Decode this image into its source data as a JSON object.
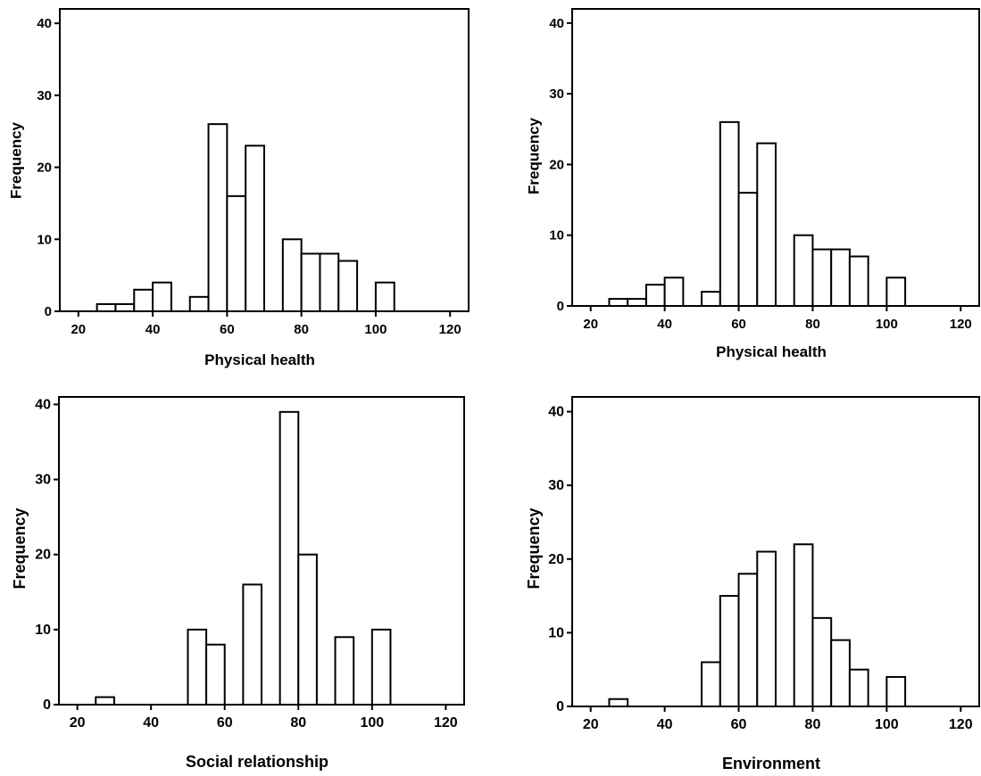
{
  "chart_data": [
    {
      "type": "bar",
      "xlabel": "Physical health",
      "ylabel": "Frequency",
      "xlim": [
        15,
        125
      ],
      "ylim": [
        0,
        42
      ],
      "xticks": [
        20,
        40,
        60,
        80,
        100,
        120
      ],
      "yticks": [
        0,
        10,
        20,
        30,
        40
      ],
      "bin_width": 5,
      "bins": [
        {
          "x0": 25,
          "x1": 30,
          "value": 1
        },
        {
          "x0": 30,
          "x1": 35,
          "value": 1
        },
        {
          "x0": 35,
          "x1": 40,
          "value": 3
        },
        {
          "x0": 40,
          "x1": 45,
          "value": 4
        },
        {
          "x0": 50,
          "x1": 55,
          "value": 2
        },
        {
          "x0": 55,
          "x1": 60,
          "value": 26
        },
        {
          "x0": 60,
          "x1": 65,
          "value": 16
        },
        {
          "x0": 65,
          "x1": 70,
          "value": 23
        },
        {
          "x0": 75,
          "x1": 80,
          "value": 10
        },
        {
          "x0": 80,
          "x1": 85,
          "value": 8
        },
        {
          "x0": 85,
          "x1": 90,
          "value": 8
        },
        {
          "x0": 90,
          "x1": 95,
          "value": 7
        },
        {
          "x0": 100,
          "x1": 105,
          "value": 4
        }
      ],
      "grid": false
    },
    {
      "type": "bar",
      "xlabel": "Physical health",
      "ylabel": "Frequency",
      "xlim": [
        15,
        125
      ],
      "ylim": [
        0,
        42
      ],
      "xticks": [
        20,
        40,
        60,
        80,
        100,
        120
      ],
      "yticks": [
        0,
        10,
        20,
        30,
        40
      ],
      "bin_width": 5,
      "bins": [
        {
          "x0": 25,
          "x1": 30,
          "value": 1
        },
        {
          "x0": 30,
          "x1": 35,
          "value": 1
        },
        {
          "x0": 35,
          "x1": 40,
          "value": 3
        },
        {
          "x0": 40,
          "x1": 45,
          "value": 4
        },
        {
          "x0": 50,
          "x1": 55,
          "value": 2
        },
        {
          "x0": 55,
          "x1": 60,
          "value": 26
        },
        {
          "x0": 60,
          "x1": 65,
          "value": 16
        },
        {
          "x0": 65,
          "x1": 70,
          "value": 23
        },
        {
          "x0": 75,
          "x1": 80,
          "value": 10
        },
        {
          "x0": 80,
          "x1": 85,
          "value": 8
        },
        {
          "x0": 85,
          "x1": 90,
          "value": 8
        },
        {
          "x0": 90,
          "x1": 95,
          "value": 7
        },
        {
          "x0": 100,
          "x1": 105,
          "value": 4
        }
      ],
      "grid": false
    },
    {
      "type": "bar",
      "xlabel": "Social relationship",
      "ylabel": "Frequency",
      "xlim": [
        15,
        125
      ],
      "ylim": [
        0,
        41
      ],
      "xticks": [
        20,
        40,
        60,
        80,
        100,
        120
      ],
      "yticks": [
        0,
        10,
        20,
        30,
        40
      ],
      "bin_width": 5,
      "bins": [
        {
          "x0": 25,
          "x1": 30,
          "value": 1
        },
        {
          "x0": 50,
          "x1": 55,
          "value": 10
        },
        {
          "x0": 55,
          "x1": 60,
          "value": 8
        },
        {
          "x0": 65,
          "x1": 70,
          "value": 16
        },
        {
          "x0": 75,
          "x1": 80,
          "value": 39
        },
        {
          "x0": 80,
          "x1": 85,
          "value": 20
        },
        {
          "x0": 90,
          "x1": 95,
          "value": 9
        },
        {
          "x0": 100,
          "x1": 105,
          "value": 10
        }
      ],
      "grid": false
    },
    {
      "type": "bar",
      "xlabel": "Environment",
      "ylabel": "Frequency",
      "xlim": [
        15,
        125
      ],
      "ylim": [
        0,
        42
      ],
      "xticks": [
        20,
        40,
        60,
        80,
        100,
        120
      ],
      "yticks": [
        0,
        10,
        20,
        30,
        40
      ],
      "bin_width": 5,
      "bins": [
        {
          "x0": 25,
          "x1": 30,
          "value": 1
        },
        {
          "x0": 50,
          "x1": 55,
          "value": 6
        },
        {
          "x0": 55,
          "x1": 60,
          "value": 15
        },
        {
          "x0": 60,
          "x1": 65,
          "value": 18
        },
        {
          "x0": 65,
          "x1": 70,
          "value": 21
        },
        {
          "x0": 75,
          "x1": 80,
          "value": 22
        },
        {
          "x0": 80,
          "x1": 85,
          "value": 12
        },
        {
          "x0": 85,
          "x1": 90,
          "value": 9
        },
        {
          "x0": 90,
          "x1": 95,
          "value": 5
        },
        {
          "x0": 100,
          "x1": 105,
          "value": 4
        }
      ],
      "grid": false
    }
  ]
}
